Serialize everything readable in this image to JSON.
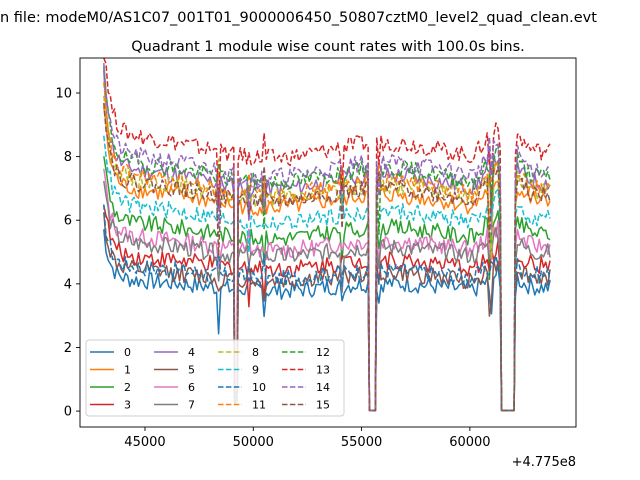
{
  "chart_data": {
    "type": "line",
    "suptitle": "n file: modeM0/AS1C07_001T01_9000006450_50807cztM0_level2_quad_clean.evt",
    "title": "Quadrant 1 module wise count rates with 100.0s bins.",
    "xlabel": "",
    "ylabel": "",
    "x_offset_label": "+4.775e8",
    "xlim": [
      42000,
      64900
    ],
    "ylim": [
      -0.5,
      11.1
    ],
    "xticks": [
      45000,
      50000,
      55000,
      60000
    ],
    "xtick_labels": [
      "45000",
      "50000",
      "55000",
      "60000"
    ],
    "yticks": [
      0,
      2,
      4,
      6,
      8,
      10
    ],
    "ytick_labels": [
      "0",
      "2",
      "4",
      "6",
      "8",
      "10"
    ],
    "grid": false,
    "legend": {
      "placement": "lower-left",
      "columns": 4
    },
    "x_range": [
      43100,
      63700
    ],
    "segments": [
      {
        "kind": "data",
        "from": 43100,
        "to": 49100
      },
      {
        "kind": "dip",
        "from": 49100,
        "to": 49300,
        "depth": 0.05
      },
      {
        "kind": "data",
        "from": 49300,
        "to": 55300
      },
      {
        "kind": "gap",
        "from": 55300,
        "to": 55700
      },
      {
        "kind": "data",
        "from": 55700,
        "to": 61400
      },
      {
        "kind": "gap",
        "from": 61400,
        "to": 62100
      },
      {
        "kind": "data",
        "from": 62100,
        "to": 63700
      }
    ],
    "series": [
      {
        "name": "0",
        "color": "#1f77b4",
        "dash": "solid",
        "level": 3.9
      },
      {
        "name": "1",
        "color": "#ff7f0e",
        "dash": "solid",
        "level": 6.6
      },
      {
        "name": "2",
        "color": "#2ca02c",
        "dash": "solid",
        "level": 5.6
      },
      {
        "name": "3",
        "color": "#d62728",
        "dash": "solid",
        "level": 4.6
      },
      {
        "name": "4",
        "color": "#9467bd",
        "dash": "solid",
        "level": 7.2
      },
      {
        "name": "5",
        "color": "#8c564b",
        "dash": "solid",
        "level": 4.2
      },
      {
        "name": "6",
        "color": "#e377c2",
        "dash": "solid",
        "level": 5.2
      },
      {
        "name": "7",
        "color": "#7f7f7f",
        "dash": "solid",
        "level": 5.0
      },
      {
        "name": "8",
        "color": "#bcbd22",
        "dash": "dashed",
        "level": 6.9
      },
      {
        "name": "9",
        "color": "#17becf",
        "dash": "dashed",
        "level": 6.1
      },
      {
        "name": "10",
        "color": "#1f77b4",
        "dash": "dashed",
        "level": 4.3
      },
      {
        "name": "11",
        "color": "#ff7f0e",
        "dash": "dashed",
        "level": 7.0
      },
      {
        "name": "12",
        "color": "#2ca02c",
        "dash": "dashed",
        "level": 7.4
      },
      {
        "name": "13",
        "color": "#d62728",
        "dash": "dashed",
        "level": 8.2
      },
      {
        "name": "14",
        "color": "#9467bd",
        "dash": "dashed",
        "level": 7.6
      },
      {
        "name": "15",
        "color": "#8c564b",
        "dash": "dashed",
        "level": 6.8
      }
    ]
  }
}
